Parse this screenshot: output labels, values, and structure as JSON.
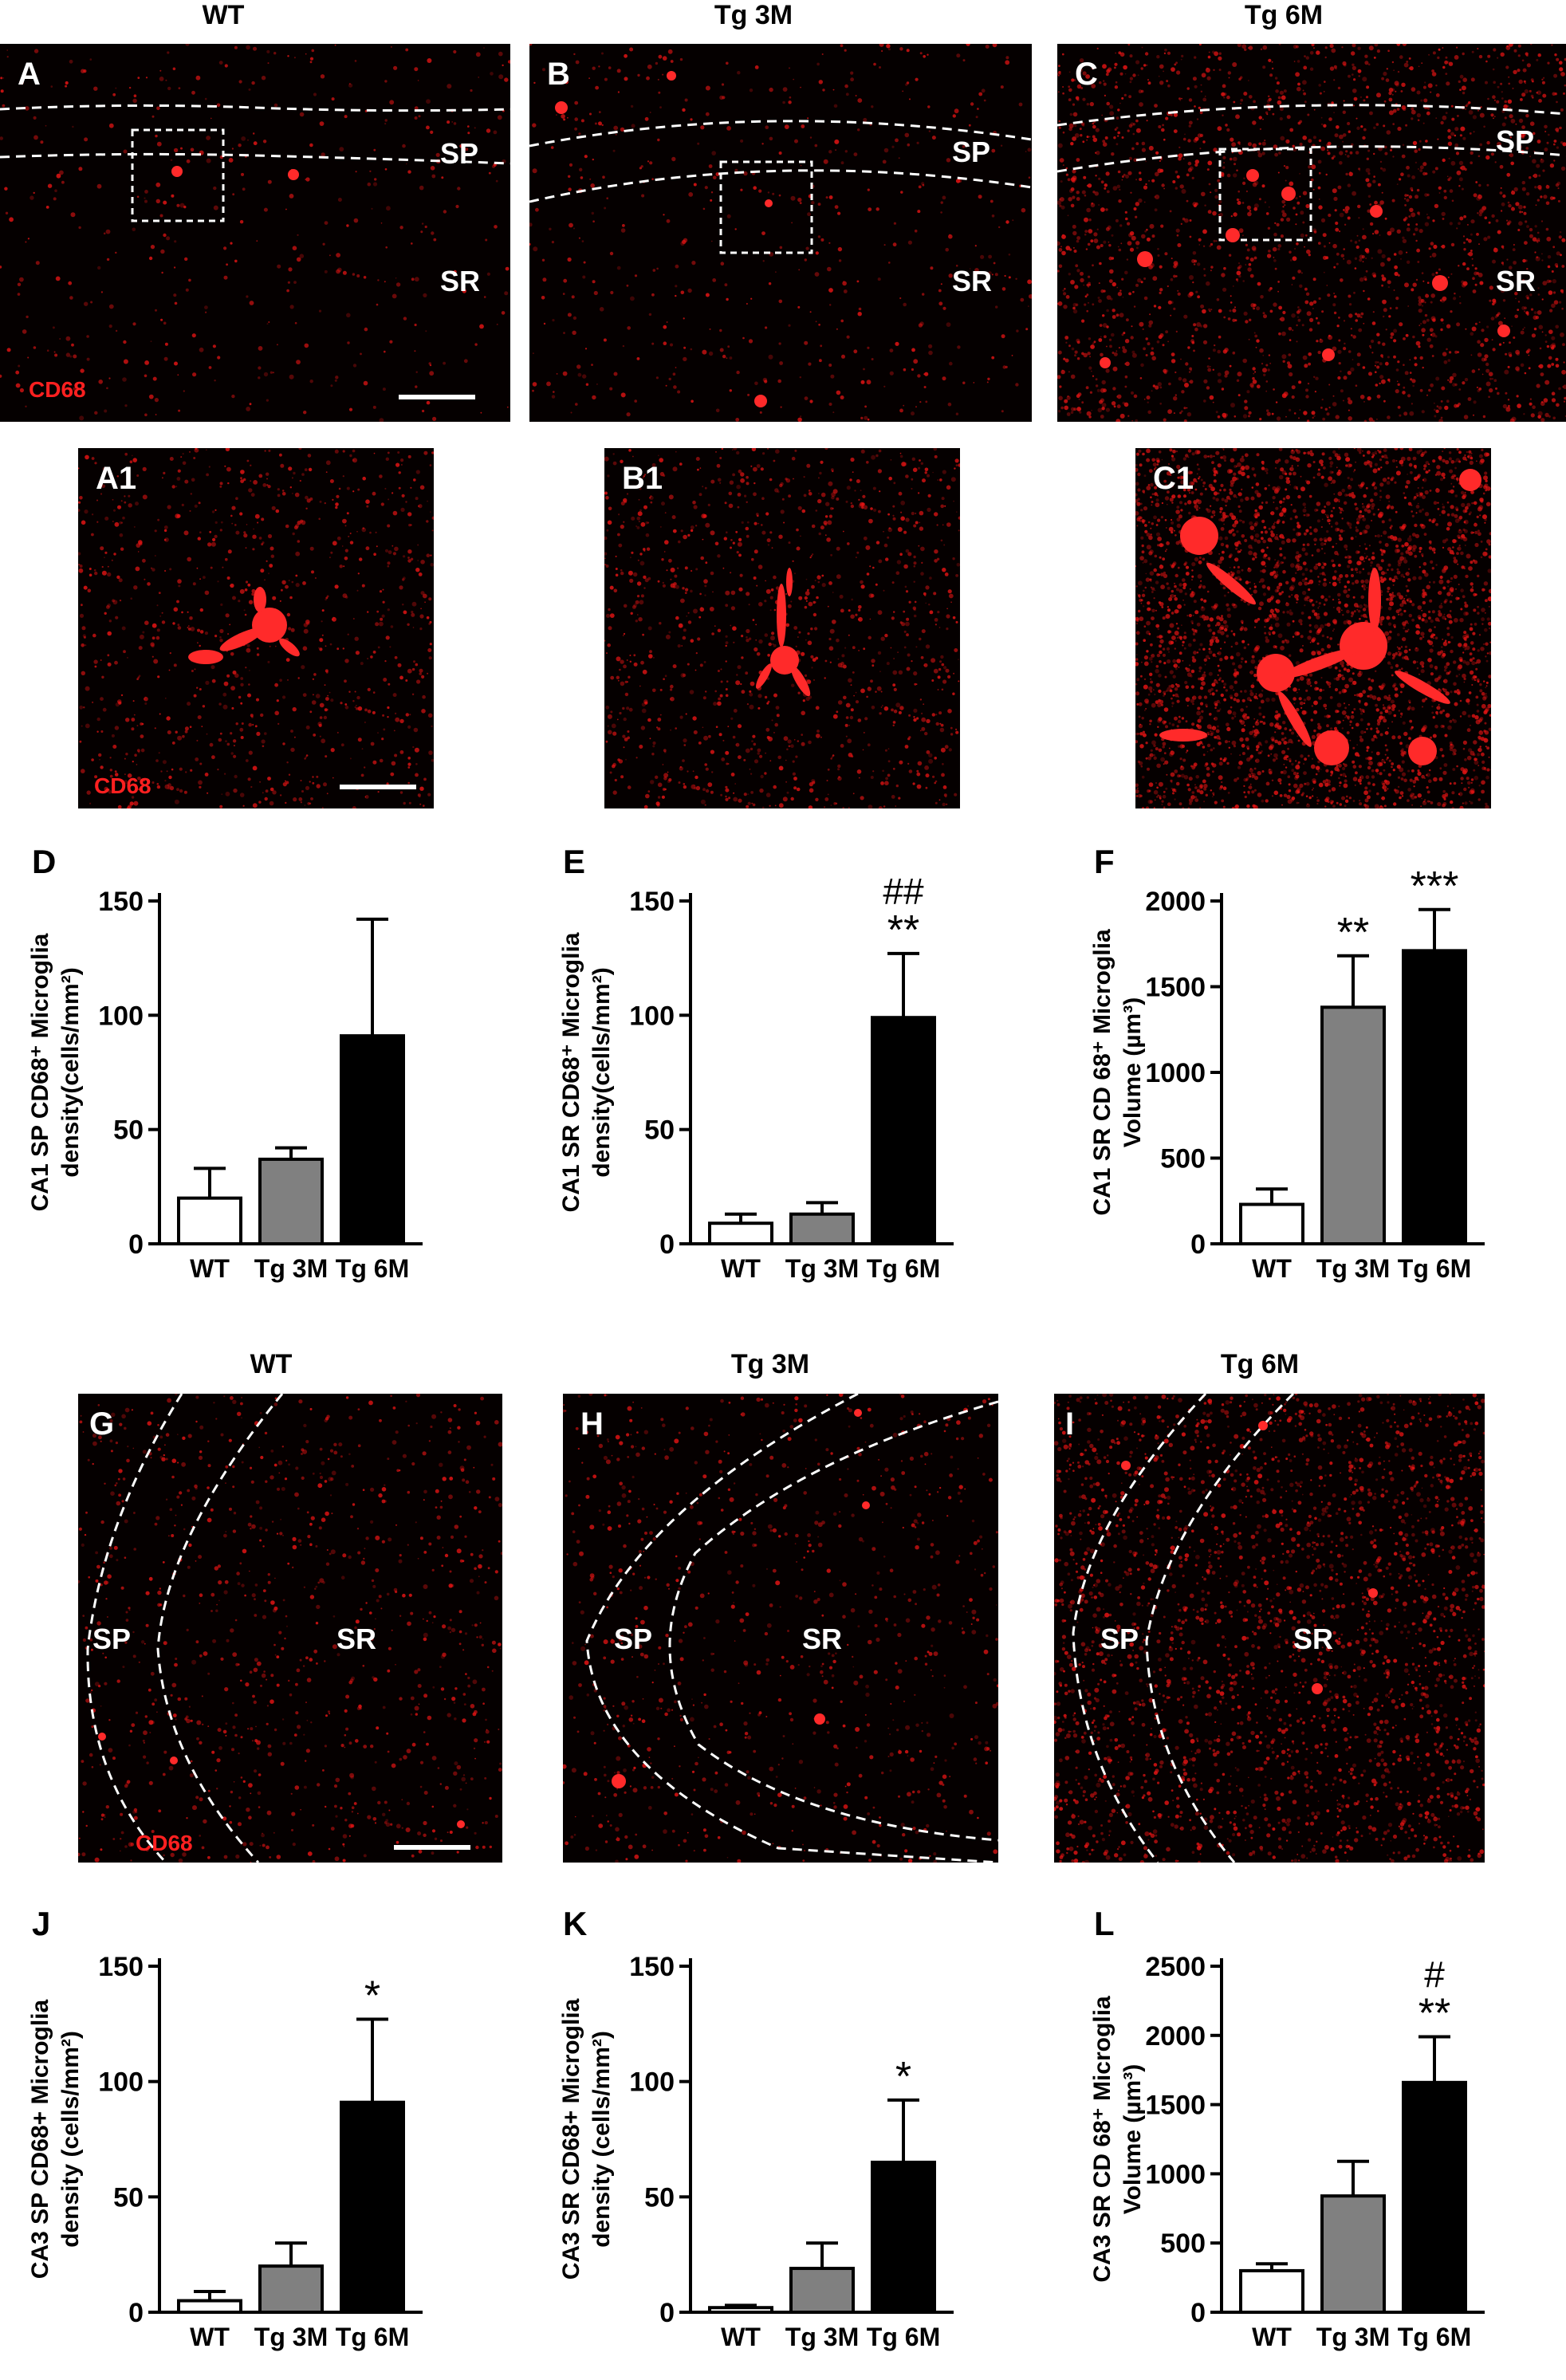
{
  "row1_titles": [
    "WT",
    "Tg 3M",
    "Tg 6M"
  ],
  "row2_titles": [
    "WT",
    "Tg 3M",
    "Tg 6M"
  ],
  "panels": {
    "A": "A",
    "B": "B",
    "C": "C",
    "A1": "A1",
    "B1": "B1",
    "C1": "C1",
    "G": "G",
    "H": "H",
    "I": "I"
  },
  "regions": {
    "sp": "SP",
    "sr": "SR"
  },
  "stain_label": "CD68",
  "chart_letters": {
    "D": "D",
    "E": "E",
    "F": "F",
    "J": "J",
    "K": "K",
    "L": "L"
  },
  "colors": {
    "wt": "#ffffff",
    "tg3m": "#808080",
    "tg6m": "#000000",
    "stain": "#ff2020"
  },
  "chart_data": [
    {
      "id": "D",
      "type": "bar",
      "categories": [
        "WT",
        "Tg 3M",
        "Tg 6M"
      ],
      "values": [
        20,
        37,
        91
      ],
      "errors": [
        13,
        5,
        51
      ],
      "ylabel_line1": "CA1 SP CD68⁺ Microglia",
      "ylabel_line2": "density(cells/mm²)",
      "ylim": [
        0,
        150
      ],
      "yticks": [
        0,
        50,
        100,
        150
      ],
      "annotations": [
        "",
        "",
        ""
      ]
    },
    {
      "id": "E",
      "type": "bar",
      "categories": [
        "WT",
        "Tg 3M",
        "Tg 6M"
      ],
      "values": [
        9,
        13,
        99
      ],
      "errors": [
        4,
        5,
        28
      ],
      "ylabel_line1": "CA1 SR CD68⁺ Microglia",
      "ylabel_line2": "density(cells/mm²)",
      "ylim": [
        0,
        150
      ],
      "yticks": [
        0,
        50,
        100,
        150
      ],
      "annotations": [
        "",
        "",
        "**"
      ],
      "annotations2": [
        "",
        "",
        "##"
      ]
    },
    {
      "id": "F",
      "type": "bar",
      "categories": [
        "WT",
        "Tg 3M",
        "Tg 6M"
      ],
      "values": [
        230,
        1380,
        1710
      ],
      "errors": [
        90,
        300,
        240
      ],
      "ylabel_line1": "CA1 SR  CD 68⁺ Microglia",
      "ylabel_line2": "Volume (µm³)",
      "ylim": [
        0,
        2000
      ],
      "yticks": [
        0,
        500,
        1000,
        1500,
        2000
      ],
      "annotations": [
        "",
        "**",
        "***"
      ]
    },
    {
      "id": "J",
      "type": "bar",
      "categories": [
        "WT",
        "Tg 3M",
        "Tg 6M"
      ],
      "values": [
        5,
        20,
        91
      ],
      "errors": [
        4,
        10,
        36
      ],
      "ylabel_line1": "CA3 SP CD68+ Microglia",
      "ylabel_line2": "density (cells/mm²)",
      "ylim": [
        0,
        150
      ],
      "yticks": [
        0,
        50,
        100,
        150
      ],
      "annotations": [
        "",
        "",
        "*"
      ]
    },
    {
      "id": "K",
      "type": "bar",
      "categories": [
        "WT",
        "Tg 3M",
        "Tg 6M"
      ],
      "values": [
        2,
        19,
        65
      ],
      "errors": [
        1,
        11,
        27
      ],
      "ylabel_line1": "CA3 SR CD68+ Microglia",
      "ylabel_line2": "density (cells/mm²)",
      "ylim": [
        0,
        150
      ],
      "yticks": [
        0,
        50,
        100,
        150
      ],
      "annotations": [
        "",
        "",
        "*"
      ]
    },
    {
      "id": "L",
      "type": "bar",
      "categories": [
        "WT",
        "Tg 3M",
        "Tg 6M"
      ],
      "values": [
        300,
        840,
        1660
      ],
      "errors": [
        50,
        250,
        330
      ],
      "ylabel_line1": "CA3 SR  CD 68⁺ Microglia",
      "ylabel_line2": "Volume (µm³)",
      "ylim": [
        0,
        2500
      ],
      "yticks": [
        0,
        500,
        1000,
        1500,
        2000,
        2500
      ],
      "annotations": [
        "",
        "",
        "**"
      ],
      "annotations2": [
        "",
        "",
        "#"
      ]
    }
  ]
}
